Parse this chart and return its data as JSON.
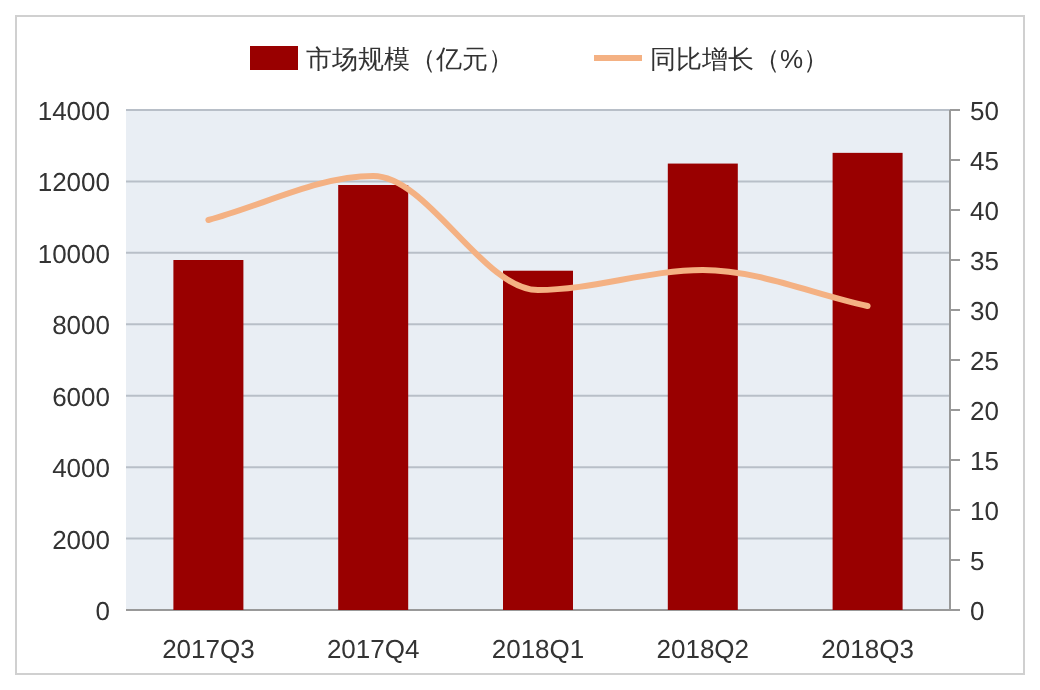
{
  "chart_data": {
    "type": "bar",
    "categories": [
      "2017Q3",
      "2017Q4",
      "2018Q1",
      "2018Q2",
      "2018Q3"
    ],
    "series": [
      {
        "name": "市场规模（亿元）",
        "color": "#990000",
        "values": [
          9800,
          11900,
          9500,
          12500,
          12800
        ]
      },
      {
        "name": "同比增长（%）",
        "type": "line",
        "axis": "y2",
        "color": "#f4b183",
        "values": [
          39,
          43.4,
          32,
          34,
          30.4
        ]
      }
    ],
    "ylim": [
      0,
      14000
    ],
    "yticks": [
      0,
      2000,
      4000,
      6000,
      8000,
      10000,
      12000,
      14000
    ],
    "y2lim": [
      0,
      50
    ],
    "y2ticks": [
      0,
      5,
      10,
      15,
      20,
      25,
      30,
      35,
      40,
      45,
      50
    ],
    "grid": "y",
    "legend": "top",
    "marker": "none"
  }
}
